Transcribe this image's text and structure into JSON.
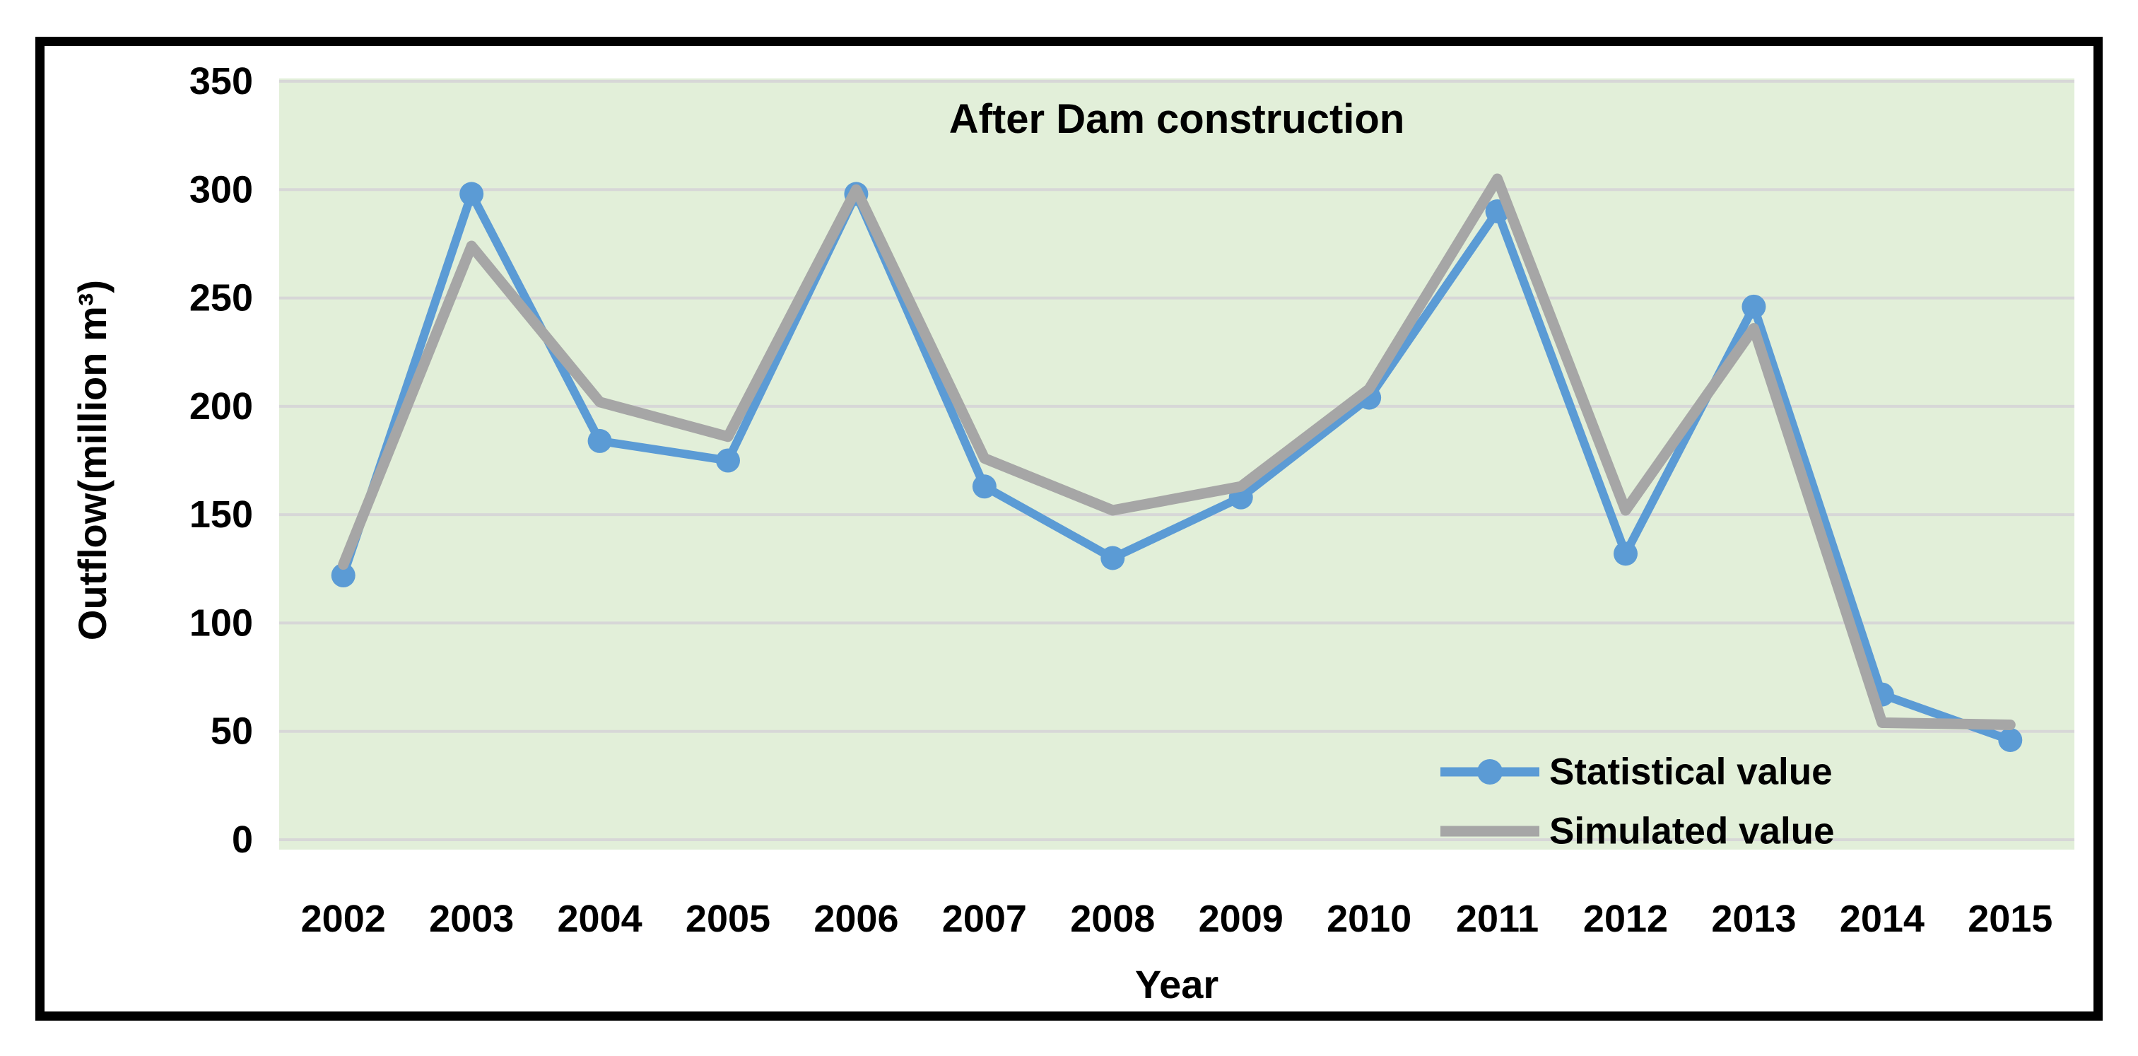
{
  "figure": {
    "background": "#ffffff",
    "border_color": "#000000"
  },
  "chart_data": {
    "type": "line",
    "title": "After Dam construction",
    "xlabel": "Year",
    "ylabel": "Outflow(million m³)",
    "x": [
      "2002",
      "2003",
      "2004",
      "2005",
      "2006",
      "2007",
      "2008",
      "2009",
      "2010",
      "2011",
      "2012",
      "2013",
      "2014",
      "2015"
    ],
    "series": [
      {
        "name": "Statistical value",
        "color": "#5B9BD5",
        "marker": "circle",
        "values": [
          122,
          298,
          184,
          175,
          298,
          163,
          130,
          158,
          204,
          290,
          132,
          246,
          67,
          46
        ]
      },
      {
        "name": "Simulated value",
        "color": "#A6A6A6",
        "marker": "none",
        "values": [
          127,
          274,
          202,
          186,
          300,
          176,
          152,
          163,
          208,
          305,
          152,
          236,
          54,
          53
        ]
      }
    ],
    "ylim": [
      0,
      350
    ],
    "ytick_step": 50,
    "yticks": [
      "0",
      "50",
      "100",
      "150",
      "200",
      "250",
      "300",
      "350"
    ],
    "grid": "horizontal",
    "grid_color": "#D7D7D7",
    "plot_bg": "#E2EFD9",
    "legend_position": "inside-bottom-right"
  }
}
